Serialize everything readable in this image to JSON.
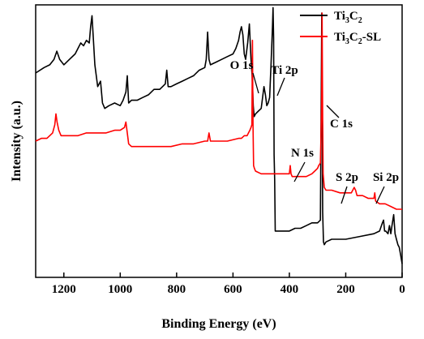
{
  "chart_data": {
    "type": "line",
    "xlabel": "Binding Energy (eV)",
    "ylabel": "Intensity (a.u.)",
    "xlim": [
      1300,
      0
    ],
    "x_reversed": true,
    "xticks": [
      1200,
      1000,
      800,
      600,
      400,
      200,
      0
    ],
    "ylim": [
      0,
      100
    ],
    "yticks_shown": false,
    "grid": false,
    "legend_position": "top-right",
    "series": [
      {
        "name": "Ti3C2",
        "legend_parts": [
          {
            "text": "Ti",
            "sub": false
          },
          {
            "text": "3",
            "sub": true
          },
          {
            "text": "C",
            "sub": false
          },
          {
            "text": "2",
            "sub": true
          }
        ],
        "color": "#000000",
        "x": [
          1300,
          1270,
          1250,
          1235,
          1225,
          1215,
          1200,
          1180,
          1160,
          1140,
          1130,
          1120,
          1110,
          1105,
          1100,
          1090,
          1080,
          1070,
          1063,
          1055,
          1040,
          1020,
          1000,
          990,
          980,
          975,
          970,
          960,
          940,
          920,
          900,
          880,
          860,
          850,
          840,
          835,
          830,
          820,
          800,
          780,
          760,
          740,
          720,
          700,
          695,
          690,
          685,
          680,
          660,
          640,
          620,
          600,
          590,
          580,
          575,
          570,
          565,
          560,
          555,
          548,
          542,
          536,
          532,
          528,
          525,
          520,
          510,
          500,
          495,
          490,
          485,
          480,
          475,
          470,
          465,
          460,
          458,
          456,
          454,
          452,
          450,
          440,
          420,
          400,
          380,
          360,
          340,
          320,
          300,
          290,
          285,
          282,
          279,
          276,
          270,
          250,
          200,
          150,
          100,
          80,
          70,
          66,
          62,
          58,
          50,
          45,
          40,
          36,
          30,
          25,
          20,
          15,
          10,
          5,
          0
        ],
        "values": [
          75,
          77,
          78,
          80,
          83,
          80,
          78,
          80,
          82,
          86,
          85,
          87,
          86,
          92,
          96,
          78,
          70,
          72,
          64,
          62,
          63,
          64,
          63,
          65,
          68,
          74,
          64,
          65,
          65,
          66,
          67,
          69,
          69,
          70,
          71,
          76,
          70,
          70,
          71,
          72,
          73,
          74,
          76,
          77,
          80,
          90,
          80,
          78,
          79,
          80,
          81,
          82,
          84,
          87,
          90,
          92,
          89,
          82,
          80,
          86,
          93,
          80,
          74,
          63,
          59,
          60,
          61,
          62,
          66,
          70,
          67,
          63,
          64,
          66,
          78,
          92,
          99,
          88,
          45,
          36,
          17,
          17,
          17,
          17,
          18,
          18,
          19,
          20,
          20,
          21,
          97,
          24,
          13,
          12,
          13,
          14,
          14,
          15,
          16,
          17,
          20,
          21,
          17,
          17,
          16,
          19,
          16,
          19,
          23,
          16,
          14,
          12,
          11,
          8,
          5
        ]
      },
      {
        "name": "Ti3C2-SL",
        "legend_parts": [
          {
            "text": "Ti",
            "sub": false
          },
          {
            "text": "3",
            "sub": true
          },
          {
            "text": "C",
            "sub": false
          },
          {
            "text": "2",
            "sub": true
          },
          {
            "text": "-SL",
            "sub": false
          }
        ],
        "color": "#ff0000",
        "x": [
          1300,
          1280,
          1260,
          1240,
          1232,
          1228,
          1224,
          1218,
          1210,
          1200,
          1180,
          1150,
          1120,
          1100,
          1080,
          1050,
          1020,
          1000,
          985,
          980,
          975,
          970,
          960,
          940,
          900,
          860,
          820,
          780,
          740,
          700,
          690,
          685,
          680,
          660,
          620,
          580,
          570,
          560,
          550,
          545,
          540,
          536,
          533,
          531,
          529,
          527,
          524,
          520,
          500,
          460,
          420,
          400,
          397,
          394,
          390,
          370,
          340,
          320,
          310,
          300,
          296,
          290,
          286,
          284,
          282,
          280,
          276,
          270,
          250,
          220,
          200,
          180,
          170,
          165,
          160,
          140,
          120,
          100,
          97,
          94,
          80,
          60,
          40,
          20,
          0
        ],
        "values": [
          50,
          51,
          51,
          53,
          56,
          60,
          57,
          54,
          52,
          52,
          52,
          52,
          53,
          53,
          53,
          53,
          54,
          54,
          55,
          57,
          53,
          49,
          48,
          48,
          48,
          48,
          48,
          49,
          49,
          50,
          50,
          53,
          50,
          50,
          50,
          51,
          51,
          52,
          52,
          53,
          54,
          55,
          56,
          87,
          56,
          41,
          40,
          39,
          38,
          38,
          38,
          38,
          41,
          38,
          37,
          37,
          37,
          38,
          39,
          40,
          41,
          42,
          61,
          97,
          58,
          38,
          33,
          32,
          32,
          31,
          31,
          31,
          33,
          32,
          30,
          30,
          29,
          29,
          31,
          28,
          27,
          27,
          26,
          25,
          25
        ]
      }
    ],
    "annotations": [
      {
        "label": "O 1s",
        "x": 575,
        "y": 84
      },
      {
        "label": "Ti 2p",
        "x": 455,
        "y": 86
      },
      {
        "label": "C 1s",
        "x": 282,
        "y": 60
      },
      {
        "label": "N 1s",
        "x": 395,
        "y": 43
      },
      {
        "label": "S 2p",
        "x": 165,
        "y": 34
      },
      {
        "label": "Si 2p",
        "x": 100,
        "y": 32
      }
    ]
  }
}
